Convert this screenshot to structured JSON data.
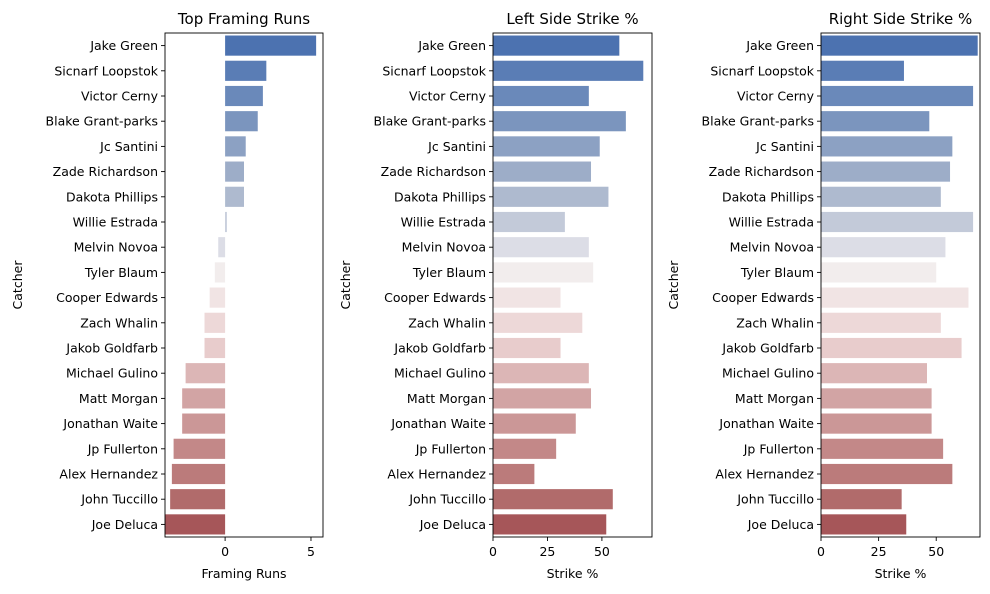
{
  "chart_data": [
    {
      "type": "bar",
      "orientation": "horizontal",
      "title": "Top Framing Runs",
      "xlabel": "Framing Runs",
      "ylabel": "Catcher",
      "xlim": [
        -3.5,
        5.7
      ],
      "xticks": [
        0,
        5
      ],
      "categories": [
        "Jake Green",
        "Sicnarf Loopstok",
        "Victor Cerny",
        "Blake Grant-parks",
        "Jc Santini",
        "Zade Richardson",
        "Dakota Phillips",
        "Willie Estrada",
        "Melvin Novoa",
        "Tyler Blaum",
        "Cooper Edwards",
        "Zach Whalin",
        "Jakob Goldfarb",
        "Michael Gulino",
        "Matt Morgan",
        "Jonathan Waite",
        "Jp Fullerton",
        "Alex Hernandez",
        "John Tuccillo",
        "Joe Deluca"
      ],
      "values": [
        5.3,
        2.4,
        2.2,
        1.9,
        1.2,
        1.1,
        1.1,
        0.1,
        -0.4,
        -0.6,
        -0.9,
        -1.2,
        -1.2,
        -2.3,
        -2.5,
        -2.5,
        -3.0,
        -3.1,
        -3.2,
        -3.5
      ],
      "grid": false
    },
    {
      "type": "bar",
      "orientation": "horizontal",
      "title": "Left Side Strike %",
      "xlabel": "Strike %",
      "ylabel": "Catcher",
      "xlim": [
        0,
        73
      ],
      "xticks": [
        0,
        25,
        50
      ],
      "categories": [
        "Jake Green",
        "Sicnarf Loopstok",
        "Victor Cerny",
        "Blake Grant-parks",
        "Jc Santini",
        "Zade Richardson",
        "Dakota Phillips",
        "Willie Estrada",
        "Melvin Novoa",
        "Tyler Blaum",
        "Cooper Edwards",
        "Zach Whalin",
        "Jakob Goldfarb",
        "Michael Gulino",
        "Matt Morgan",
        "Jonathan Waite",
        "Jp Fullerton",
        "Alex Hernandez",
        "John Tuccillo",
        "Joe Deluca"
      ],
      "values": [
        58,
        69,
        44,
        61,
        49,
        45,
        53,
        33,
        44,
        46,
        31,
        41,
        31,
        44,
        45,
        38,
        29,
        19,
        55,
        52
      ],
      "grid": false
    },
    {
      "type": "bar",
      "orientation": "horizontal",
      "title": "Right Side Strike %",
      "xlabel": "Strike %",
      "ylabel": "Catcher",
      "xlim": [
        0,
        69
      ],
      "xticks": [
        0,
        25,
        50
      ],
      "categories": [
        "Jake Green",
        "Sicnarf Loopstok",
        "Victor Cerny",
        "Blake Grant-parks",
        "Jc Santini",
        "Zade Richardson",
        "Dakota Phillips",
        "Willie Estrada",
        "Melvin Novoa",
        "Tyler Blaum",
        "Cooper Edwards",
        "Zach Whalin",
        "Jakob Goldfarb",
        "Michael Gulino",
        "Matt Morgan",
        "Jonathan Waite",
        "Jp Fullerton",
        "Alex Hernandez",
        "John Tuccillo",
        "Joe Deluca"
      ],
      "values": [
        68,
        36,
        66,
        47,
        57,
        56,
        52,
        66,
        54,
        50,
        64,
        52,
        61,
        46,
        48,
        48,
        53,
        57,
        35,
        37
      ],
      "grid": false
    }
  ],
  "palette": [
    "#4c72b0",
    "#5a7db5",
    "#6a89ba",
    "#7b95be",
    "#8ca1c3",
    "#9dadc8",
    "#aebacf",
    "#c3cad9",
    "#dcdde6",
    "#f2eded",
    "#f1e4e4",
    "#edd8d8",
    "#e8cccc",
    "#dcb6b6",
    "#d2a4a4",
    "#cb9797",
    "#c38888",
    "#bb7b7b",
    "#b16b6b",
    "#a65659"
  ]
}
